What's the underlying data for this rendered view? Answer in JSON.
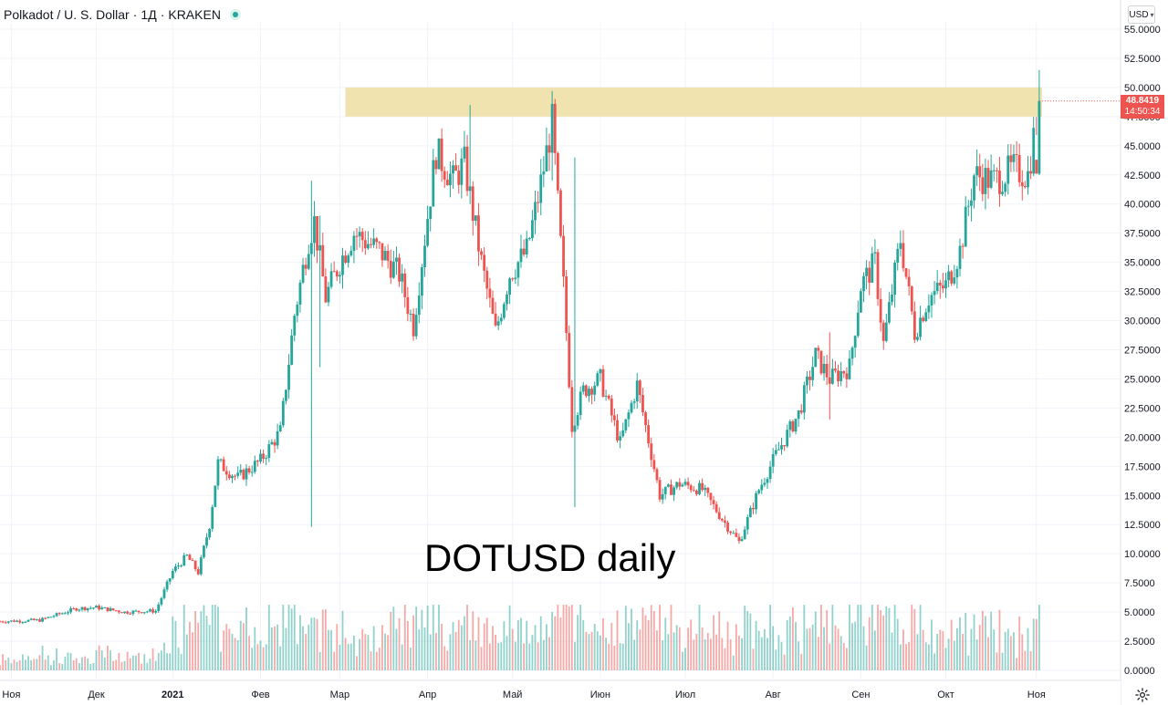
{
  "header": {
    "symbol": "Polkadot / U. S. Dollar",
    "interval": "1Д",
    "exchange": "KRAKEN",
    "live_icon": "green-dot-icon"
  },
  "currency_button": {
    "label": "USD",
    "icon": "chevron-down-icon"
  },
  "last_price": {
    "value": "48.8419",
    "countdown": "14:50:34",
    "color": "#ef5350"
  },
  "annotation_text": "DOTUSD daily",
  "settings_icon": "gear-icon",
  "colors": {
    "up": "#26a69a",
    "down": "#ef5350",
    "highlight": "#f0e1ac",
    "grid": "#f0f3fa"
  },
  "chart_data": {
    "type": "candlestick",
    "title": "",
    "y_axis": {
      "min": 0,
      "max": 55,
      "ticks": [
        "55.0000",
        "52.5000",
        "50.0000",
        "47.5000",
        "45.0000",
        "42.5000",
        "40.0000",
        "37.5000",
        "35.0000",
        "32.5000",
        "30.0000",
        "27.5000",
        "25.0000",
        "22.5000",
        "20.0000",
        "17.5000",
        "15.0000",
        "12.5000",
        "10.0000",
        "7.5000",
        "5.0000",
        "2.5000",
        "0.0000"
      ],
      "scale": "linear",
      "position": "right"
    },
    "x_axis": {
      "labels": [
        "Ноя",
        "Дек",
        "2021",
        "Фев",
        "Мар",
        "Апр",
        "Май",
        "Июн",
        "Июл",
        "Авг",
        "Сен",
        "Окт",
        "Ноя"
      ],
      "start": "2020-11-01",
      "end": "2021-11-04"
    },
    "highlight_zone": {
      "from": 47.5,
      "to": 50.0,
      "start": "2021-03-01",
      "end": "2021-11-04"
    },
    "close_series": [
      {
        "date": "2020-11-01",
        "close": 4.2
      },
      {
        "date": "2020-11-15",
        "close": 4.3
      },
      {
        "date": "2020-11-28",
        "close": 5.3
      },
      {
        "date": "2020-12-05",
        "close": 5.4
      },
      {
        "date": "2020-12-15",
        "close": 5.0
      },
      {
        "date": "2020-12-26",
        "close": 5.1
      },
      {
        "date": "2021-01-01",
        "close": 8.5
      },
      {
        "date": "2021-01-06",
        "close": 9.8
      },
      {
        "date": "2021-01-10",
        "close": 8.4
      },
      {
        "date": "2021-01-14",
        "close": 12.5
      },
      {
        "date": "2021-01-17",
        "close": 17.8
      },
      {
        "date": "2021-01-24",
        "close": 16.5
      },
      {
        "date": "2021-02-01",
        "close": 18.0
      },
      {
        "date": "2021-02-08",
        "close": 20.5
      },
      {
        "date": "2021-02-13",
        "close": 30.5
      },
      {
        "date": "2021-02-18",
        "close": 37.0
      },
      {
        "date": "2021-02-20",
        "close": 38.5
      },
      {
        "date": "2021-02-24",
        "close": 32.0
      },
      {
        "date": "2021-03-01",
        "close": 35.0
      },
      {
        "date": "2021-03-06",
        "close": 37.5
      },
      {
        "date": "2021-03-15",
        "close": 36.0
      },
      {
        "date": "2021-03-22",
        "close": 34.0
      },
      {
        "date": "2021-03-27",
        "close": 29.5
      },
      {
        "date": "2021-04-01",
        "close": 39.0
      },
      {
        "date": "2021-04-04",
        "close": 44.5
      },
      {
        "date": "2021-04-10",
        "close": 42.0
      },
      {
        "date": "2021-04-14",
        "close": 43.5
      },
      {
        "date": "2021-04-20",
        "close": 35.0
      },
      {
        "date": "2021-04-25",
        "close": 29.0
      },
      {
        "date": "2021-04-30",
        "close": 34.0
      },
      {
        "date": "2021-05-06",
        "close": 36.0
      },
      {
        "date": "2021-05-10",
        "close": 40.5
      },
      {
        "date": "2021-05-15",
        "close": 47.0
      },
      {
        "date": "2021-05-19",
        "close": 33.0
      },
      {
        "date": "2021-05-22",
        "close": 21.0
      },
      {
        "date": "2021-05-26",
        "close": 24.0
      },
      {
        "date": "2021-06-01",
        "close": 25.0
      },
      {
        "date": "2021-06-08",
        "close": 19.5
      },
      {
        "date": "2021-06-14",
        "close": 24.5
      },
      {
        "date": "2021-06-22",
        "close": 15.0
      },
      {
        "date": "2021-06-29",
        "close": 16.0
      },
      {
        "date": "2021-07-07",
        "close": 15.5
      },
      {
        "date": "2021-07-14",
        "close": 13.0
      },
      {
        "date": "2021-07-20",
        "close": 11.0
      },
      {
        "date": "2021-07-27",
        "close": 15.5
      },
      {
        "date": "2021-08-02",
        "close": 18.5
      },
      {
        "date": "2021-08-10",
        "close": 22.0
      },
      {
        "date": "2021-08-16",
        "close": 27.0
      },
      {
        "date": "2021-08-21",
        "close": 25.0
      },
      {
        "date": "2021-08-28",
        "close": 26.0
      },
      {
        "date": "2021-09-01",
        "close": 33.0
      },
      {
        "date": "2021-09-06",
        "close": 35.0
      },
      {
        "date": "2021-09-09",
        "close": 28.0
      },
      {
        "date": "2021-09-15",
        "close": 37.0
      },
      {
        "date": "2021-09-20",
        "close": 29.0
      },
      {
        "date": "2021-09-25",
        "close": 32.0
      },
      {
        "date": "2021-10-01",
        "close": 33.0
      },
      {
        "date": "2021-10-06",
        "close": 36.0
      },
      {
        "date": "2021-10-11",
        "close": 42.5
      },
      {
        "date": "2021-10-18",
        "close": 42.0
      },
      {
        "date": "2021-10-25",
        "close": 43.0
      },
      {
        "date": "2021-10-30",
        "close": 42.5
      },
      {
        "date": "2021-11-03",
        "close": 48.8419
      }
    ],
    "spikes": [
      {
        "date": "2021-02-19",
        "high": 42.0,
        "low": 12.3
      },
      {
        "date": "2021-02-22",
        "high": 39.0,
        "low": 26.0
      },
      {
        "date": "2021-04-16",
        "high": 48.5,
        "low": 40.0
      },
      {
        "date": "2021-05-15",
        "high": 49.7,
        "low": 42.0
      },
      {
        "date": "2021-05-23",
        "high": 44.0,
        "low": 14.0
      },
      {
        "date": "2021-08-21",
        "high": 29.0,
        "low": 21.5
      },
      {
        "date": "2021-11-03",
        "high": 51.5,
        "low": 42.5
      }
    ],
    "volume": {
      "axis_max": 7.5,
      "unit": "scaled"
    }
  }
}
